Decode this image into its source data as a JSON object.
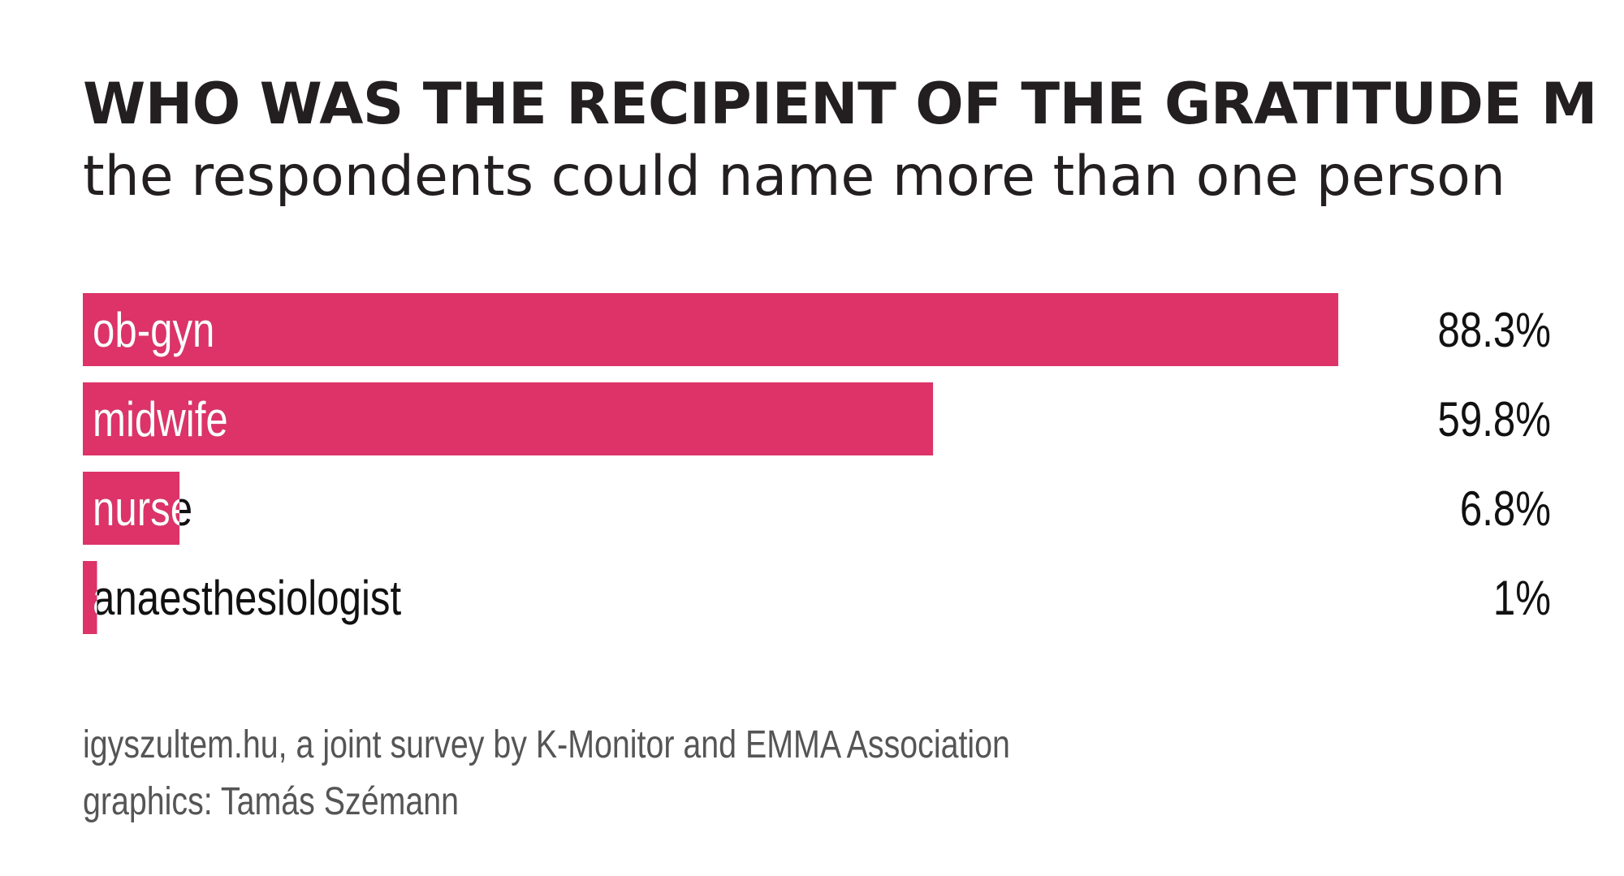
{
  "chart_data": {
    "type": "bar",
    "orientation": "horizontal",
    "title": "WHO WAS THE RECIPIENT OF THE GRATITUDE M",
    "subtitle": "the respondents could name more than one person",
    "categories": [
      "ob-gyn",
      "midwife",
      "nurse",
      "anaesthesiologist"
    ],
    "values": [
      88.3,
      59.8,
      6.8,
      1
    ],
    "value_labels": [
      "88.3%",
      "59.8%",
      "6.8%",
      "1%"
    ],
    "unit": "%",
    "xlim": [
      0,
      100
    ],
    "grid": false,
    "legend": "none",
    "bar_color": "#dd3369"
  },
  "footer": {
    "source": "igyszultem.hu, a joint survey by K-Monitor and EMMA Association",
    "credit": "graphics: Tamás Szémann"
  }
}
